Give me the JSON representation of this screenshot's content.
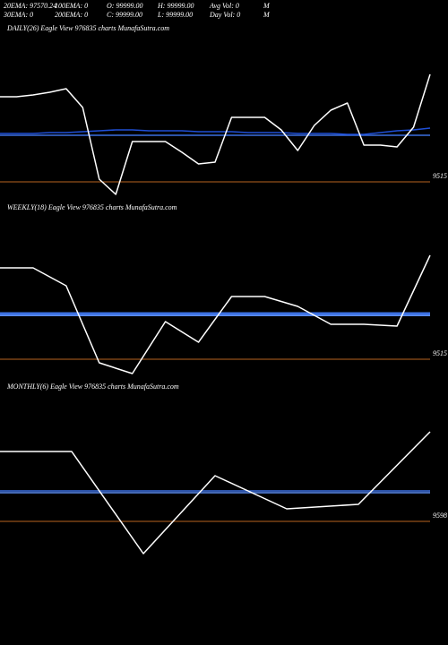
{
  "header": [
    [
      "20EMA: 97570.24",
      "100EMA: 0",
      "O: 99999.00",
      "H: 99999.00",
      "Avg Vol: 0",
      "M"
    ],
    [
      "30EMA: 0",
      "200EMA: 0",
      "C: 99999.00",
      "L: 99999.00",
      "Day Vol: 0",
      "M"
    ]
  ],
  "chart_data": [
    {
      "type": "line",
      "title": "DAILY(26) Eagle  View  976835 charts MunafaSutra.com",
      "ylim": [
        0,
        100
      ],
      "series": [
        {
          "color": "#ffffff",
          "values": [
            66,
            66,
            67,
            68.5,
            70.5,
            60,
            20,
            11.5,
            41,
            41,
            41,
            35,
            28.5,
            29.5,
            54.5,
            54.5,
            54.5,
            47.5,
            36,
            50,
            58.5,
            62.5,
            39,
            39,
            38,
            49,
            78.5
          ]
        },
        {
          "color": "#1f4fd6",
          "values": [
            45.5,
            45.5,
            45.5,
            46,
            46,
            46.5,
            47,
            47.5,
            47.5,
            47,
            47,
            47,
            46.5,
            46.5,
            46.5,
            46,
            46,
            46,
            45.5,
            45.5,
            45.5,
            45,
            45,
            46,
            47,
            47.5,
            48.5
          ]
        },
        {
          "color": "#3b6fe0",
          "values": [
            44.5,
            44.5,
            44.5,
            44.5,
            44.5,
            44.5,
            44.5,
            44.5,
            44.5,
            44.5,
            44.5,
            44.5,
            44.5,
            44.5,
            44.5,
            44.5,
            44.5,
            44.5,
            44.5,
            44.5,
            44.5,
            44.5,
            44.5,
            44.5,
            44.5,
            44.5,
            44.5
          ]
        }
      ],
      "ref_line": 18.5,
      "ref_label": "9515",
      "ref_color": "#b8651f"
    },
    {
      "type": "line",
      "title": "WEEKLY(18) Eagle  View  976835 charts MunafaSutra.com",
      "ylim": [
        0,
        100
      ],
      "series": [
        {
          "color": "#ffffff",
          "values": [
            70.5,
            70.5,
            60.5,
            17.5,
            11.5,
            40.5,
            29,
            54.5,
            54.5,
            49,
            39,
            39,
            38,
            77.5
          ]
        },
        {
          "color": "#3b6fe0",
          "values": [
            45,
            45,
            45,
            45,
            45,
            45,
            45,
            45,
            45,
            45,
            45,
            45,
            45,
            45
          ]
        },
        {
          "color": "#5b8cf0",
          "values": [
            44,
            44,
            44,
            44,
            44,
            44,
            44,
            44,
            44,
            44,
            44,
            44,
            44,
            44
          ]
        }
      ],
      "ref_line": 19.5,
      "ref_label": "9515",
      "ref_color": "#b8651f"
    },
    {
      "type": "line",
      "title": "MONTHLY(6) Eagle  View  976835 charts MunafaSutra.com",
      "ylim": [
        0,
        100
      ],
      "series": [
        {
          "color": "#ffffff",
          "values": [
            68,
            68,
            11,
            54.5,
            36,
            38.5,
            79
          ]
        },
        {
          "color": "#3b6fe0",
          "values": [
            46,
            46,
            46,
            46,
            46,
            46,
            46
          ]
        },
        {
          "color": "#5b8cf0",
          "values": [
            45,
            45,
            45,
            45,
            45,
            45,
            45
          ]
        }
      ],
      "ref_line": 29,
      "ref_label": "9598",
      "ref_color": "#b8651f"
    }
  ]
}
